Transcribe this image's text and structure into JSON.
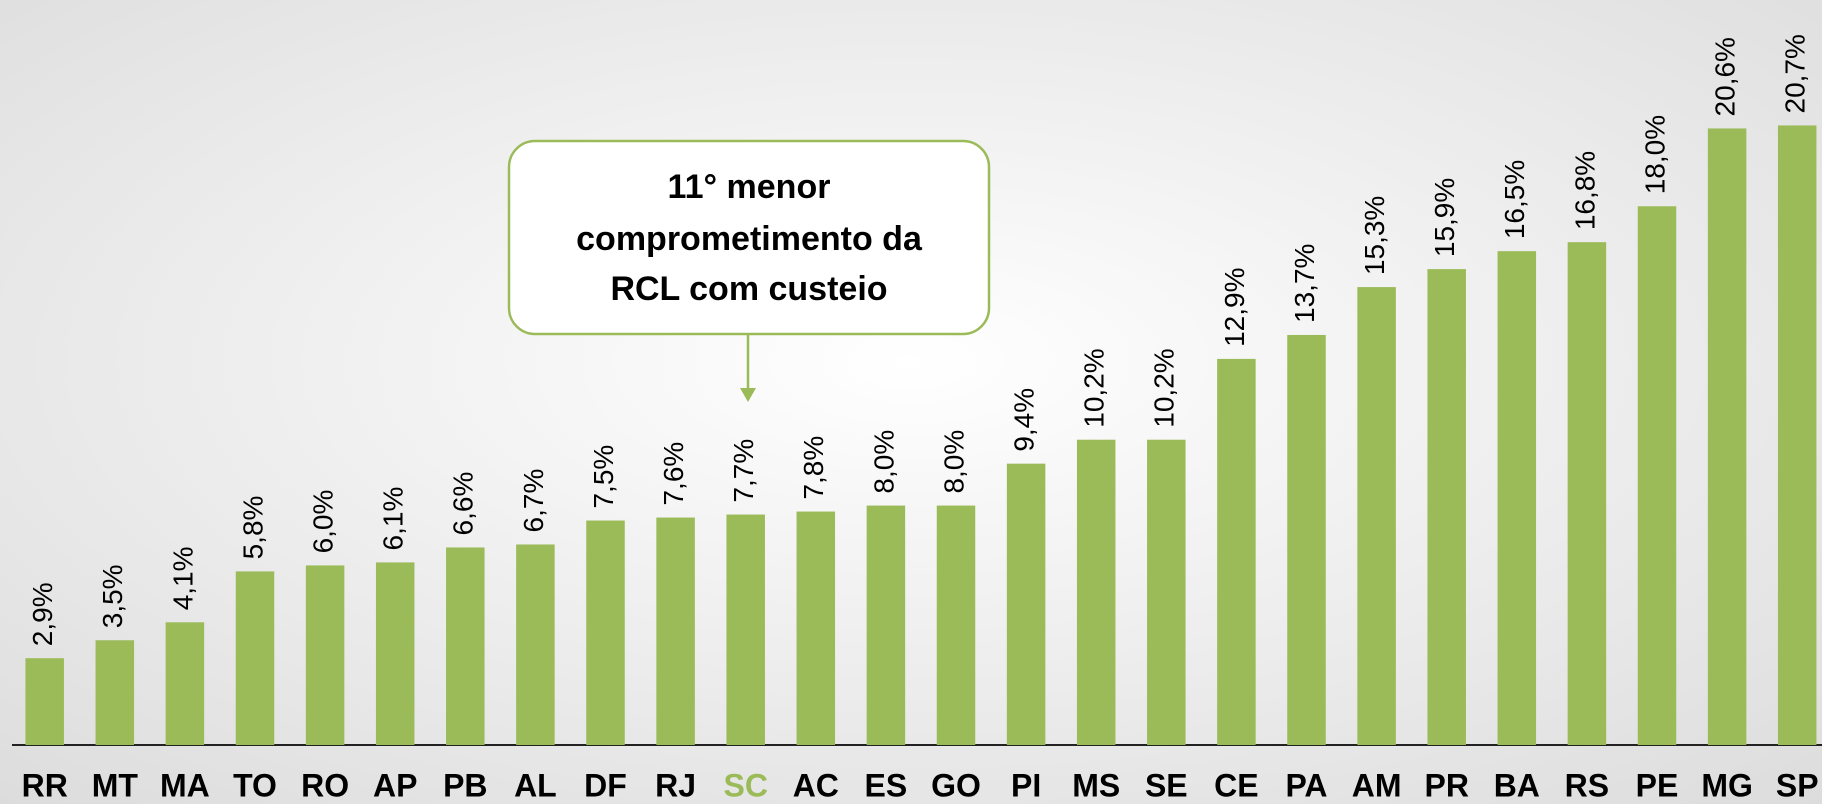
{
  "chart_data": {
    "type": "bar",
    "categories": [
      "RR",
      "MT",
      "MA",
      "TO",
      "RO",
      "AP",
      "PB",
      "AL",
      "DF",
      "RJ",
      "SC",
      "AC",
      "ES",
      "GO",
      "PI",
      "MS",
      "SE",
      "CE",
      "PA",
      "AM",
      "PR",
      "BA",
      "RS",
      "PE",
      "MG",
      "SP"
    ],
    "values": [
      2.9,
      3.5,
      4.1,
      5.8,
      6.0,
      6.1,
      6.6,
      6.7,
      7.5,
      7.6,
      7.7,
      7.8,
      8.0,
      8.0,
      9.4,
      10.2,
      10.2,
      12.9,
      13.7,
      15.3,
      15.9,
      16.5,
      16.8,
      18.0,
      20.6,
      20.7
    ],
    "value_labels": [
      "2,9%",
      "3,5%",
      "4,1%",
      "5,8%",
      "6,0%",
      "6,1%",
      "6,6%",
      "6,7%",
      "7,5%",
      "7,6%",
      "7,7%",
      "7,8%",
      "8,0%",
      "8,0%",
      "9,4%",
      "10,2%",
      "10,2%",
      "12,9%",
      "13,7%",
      "15,3%",
      "15,9%",
      "16,5%",
      "16,8%",
      "18,0%",
      "20,6%",
      "20,7%"
    ],
    "color": "#9bbb59",
    "highlight": "SC",
    "highlight_color": "#9bbb59",
    "annotation": [
      "11° menor",
      "comprometimento da",
      "RCL com custeio"
    ]
  }
}
